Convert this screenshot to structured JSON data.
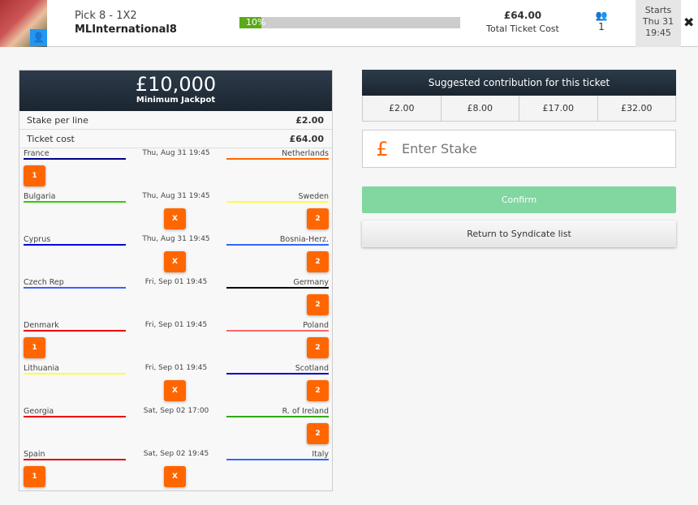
{
  "header": {
    "pick": "Pick 8 - 1X2",
    "name": "MLInternational8",
    "progress_label": "10%",
    "progress_pct": 10,
    "cost": "£64.00",
    "cost_label": "Total Ticket Cost",
    "members": "1",
    "starts": [
      "Starts",
      "Thu 31",
      "19:45"
    ]
  },
  "ticket": {
    "jackpot": "£10,000",
    "jackpot_label": "Minimum Jackpot",
    "stake_label": "Stake per line",
    "stake": "£2.00",
    "cost_label": "Ticket cost",
    "cost": "£64.00",
    "matches": [
      {
        "home": "France",
        "away": "Netherlands",
        "date": "Thu, Aug 31 19:45",
        "hc": "#00008b",
        "ac": "#ff6600",
        "picks": [
          "1"
        ]
      },
      {
        "home": "Bulgaria",
        "away": "Sweden",
        "date": "Thu, Aug 31 19:45",
        "hc": "#33cc00",
        "ac": "#ffff33",
        "picks": [
          "X",
          "2"
        ]
      },
      {
        "home": "Cyprus",
        "away": "Bosnia-Herz.",
        "date": "Thu, Aug 31 19:45",
        "hc": "#0000dd",
        "ac": "#3366ff",
        "picks": [
          "X",
          "2"
        ]
      },
      {
        "home": "Czech Rep",
        "away": "Germany",
        "date": "Fri, Sep 01 19:45",
        "hc": "#3366ff",
        "ac": "#000000",
        "picks": [
          "2"
        ]
      },
      {
        "home": "Denmark",
        "away": "Poland",
        "date": "Fri, Sep 01 19:45",
        "hc": "#ee0000",
        "ac": "#ff6666",
        "picks": [
          "1",
          "2"
        ]
      },
      {
        "home": "Lithuania",
        "away": "Scotland",
        "date": "Fri, Sep 01 19:45",
        "hc": "#ffff33",
        "ac": "#0000cc",
        "picks": [
          "X",
          "2"
        ]
      },
      {
        "home": "Georgia",
        "away": "R. of Ireland",
        "date": "Sat, Sep 02 17:00",
        "hc": "#ee0000",
        "ac": "#33aa00",
        "picks": [
          "2"
        ]
      },
      {
        "home": "Spain",
        "away": "Italy",
        "date": "Sat, Sep 02 19:45",
        "hc": "#dd0000",
        "ac": "#3366ff",
        "picks": [
          "1",
          "X"
        ]
      }
    ]
  },
  "contrib": {
    "title": "Suggested contribution for this ticket",
    "amounts": [
      "£2.00",
      "£8.00",
      "£17.00",
      "£32.00"
    ],
    "currency": "£",
    "placeholder": "Enter Stake",
    "confirm": "Confirm",
    "return": "Return to Syndicate list"
  }
}
